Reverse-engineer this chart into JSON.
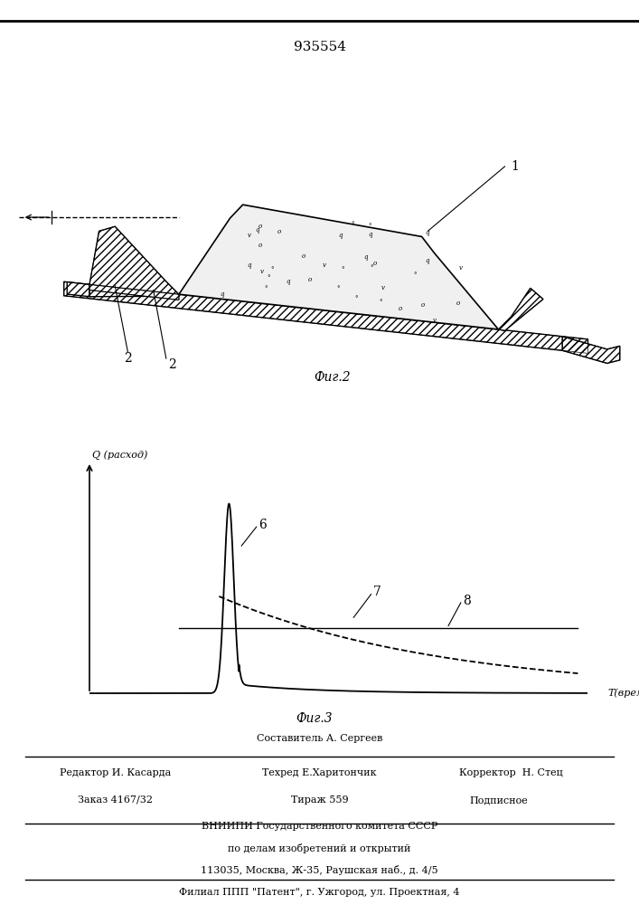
{
  "patent_number": "935554",
  "fig2_label": "Фиг.2",
  "fig3_label": "Фиг.3",
  "graph_xlabel": "T(время)",
  "graph_ylabel": "Q (расход)",
  "label_6": "6",
  "label_7": "7",
  "label_8": "8",
  "footer_line0": "Составитель А. Сергеев",
  "footer_line1a": "Редактор И. Касарда",
  "footer_line1b": "Техред Е.Харитончик",
  "footer_line1c": "Корректор  Н. Стец",
  "footer_line2a": "Заказ 4167/32",
  "footer_line2b": "Тираж 559",
  "footer_line2c": "Подписное",
  "footer_line3": "ВНИИПИ Государственного комитета СССР",
  "footer_line4": "по делам изобретений и открытий",
  "footer_line5": "113035, Москва, Ж-35, Раушская наб., д. 4/5",
  "footer_line6": "Филиал ППП \"Патент\", г. Ужгород, ул. Проектная, 4",
  "bg_color": "#ffffff",
  "line_color": "#000000"
}
